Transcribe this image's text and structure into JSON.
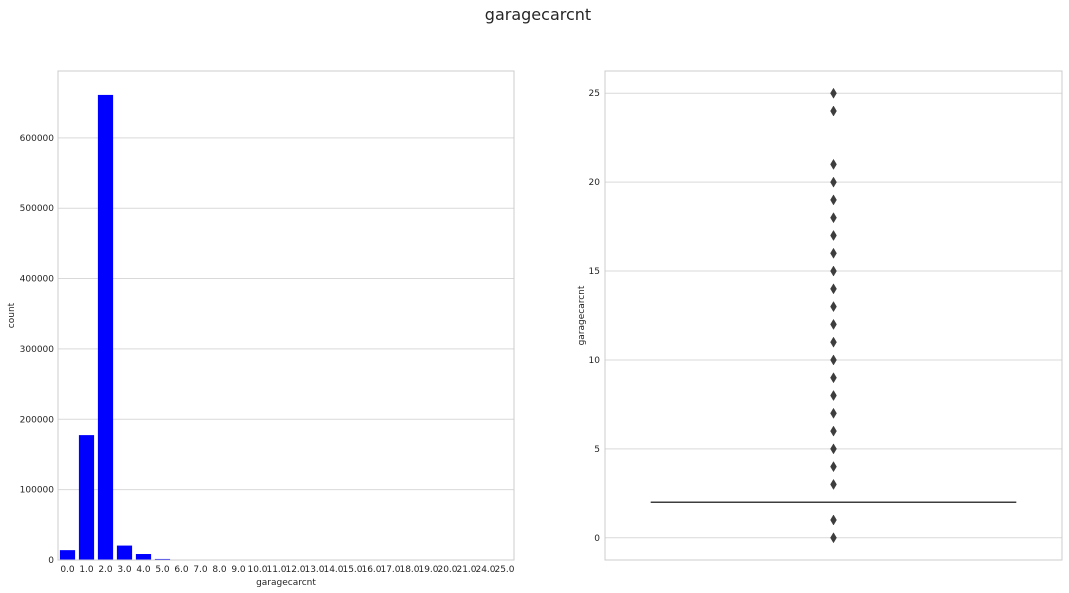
{
  "figure": {
    "title": "garagecarcnt"
  },
  "chart_data": [
    {
      "type": "bar",
      "xlabel": "garagecarcnt",
      "ylabel": "count",
      "categories": [
        "0.0",
        "1.0",
        "2.0",
        "3.0",
        "4.0",
        "5.0",
        "6.0",
        "7.0",
        "8.0",
        "9.0",
        "10.0",
        "11.0",
        "12.0",
        "13.0",
        "14.0",
        "15.0",
        "16.0",
        "17.0",
        "18.0",
        "19.0",
        "20.0",
        "21.0",
        "24.0",
        "25.0"
      ],
      "values": [
        14000,
        177500,
        661000,
        20500,
        8500,
        1500,
        500,
        200,
        100,
        50,
        40,
        30,
        20,
        15,
        10,
        8,
        6,
        5,
        4,
        3,
        3,
        2,
        2,
        2
      ],
      "ylim": [
        0,
        695000
      ],
      "yticks": [
        0,
        100000,
        200000,
        300000,
        400000,
        500000,
        600000
      ],
      "grid": true,
      "color": "#0000ff"
    },
    {
      "type": "box",
      "ylabel": "garagecarcnt",
      "xlabel": "",
      "ylim": [
        -1.25,
        26.25
      ],
      "yticks": [
        0,
        5,
        10,
        15,
        20,
        25
      ],
      "box": {
        "q1": 2,
        "median": 2,
        "q3": 2,
        "whisker_low": 2,
        "whisker_high": 2
      },
      "outliers": [
        0,
        1,
        3,
        4,
        5,
        6,
        7,
        8,
        9,
        10,
        11,
        12,
        13,
        14,
        15,
        16,
        17,
        18,
        19,
        20,
        21,
        24,
        25
      ],
      "grid": true,
      "color": "#3d3d3d"
    }
  ]
}
